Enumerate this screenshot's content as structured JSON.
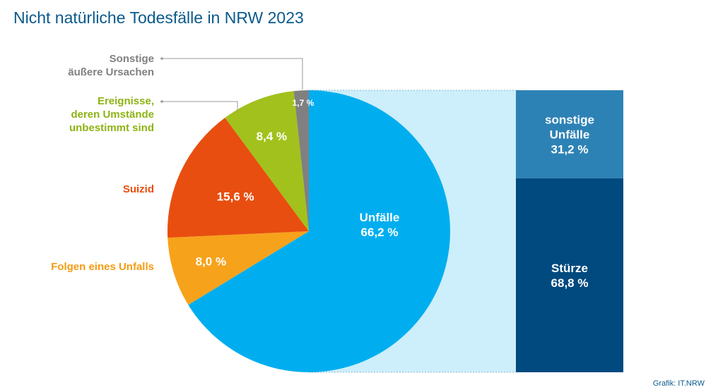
{
  "title": "Nicht natürliche Todesfälle in NRW 2023",
  "credit": "Grafik: IT.NRW",
  "colors": {
    "unfaelle": "#00aeef",
    "folgen": "#f7a21b",
    "suizid": "#e84e0f",
    "ereignisse": "#a2c11c",
    "sonstige_aeussere": "#808080",
    "breakout_bg": "#cdeefb",
    "sonstige_unfaelle": "#2d82b5",
    "stuerze": "#004a7f",
    "leader_gray": "#999999"
  },
  "chart_data": [
    {
      "type": "pie",
      "title": "Nicht natürliche Todesfälle in NRW 2023",
      "slices": [
        {
          "key": "unfaelle",
          "label": "Unfälle",
          "value": 66.2,
          "value_label": "66,2 %"
        },
        {
          "key": "folgen",
          "label": "Folgen eines Unfalls",
          "value": 8.0,
          "value_label": "8,0 %"
        },
        {
          "key": "suizid",
          "label": "Suizid",
          "value": 15.6,
          "value_label": "15,6 %"
        },
        {
          "key": "ereignisse",
          "label": "Ereignisse, deren Umstände unbestimmt sind",
          "value": 8.4,
          "value_label": "8,4 %"
        },
        {
          "key": "sonstige_aeussere",
          "label": "Sonstige äußere Ursachen",
          "value": 1.7,
          "value_label": "1,7 %"
        }
      ],
      "external_labels": {
        "sonstige_aeussere": [
          "Sonstige",
          "äußere Ursachen"
        ],
        "ereignisse": [
          "Ereignisse,",
          "deren Umstände",
          "unbestimmt sind"
        ],
        "suizid": [
          "Suizid"
        ],
        "folgen": [
          "Folgen eines Unfalls"
        ]
      }
    },
    {
      "type": "bar",
      "stacked": true,
      "breakout_of": "Unfälle",
      "segments": [
        {
          "key": "sonstige_unfaelle",
          "label": [
            "sonstige",
            "Unfälle"
          ],
          "value": 31.2,
          "value_label": "31,2 %"
        },
        {
          "key": "stuerze",
          "label": [
            "Stürze"
          ],
          "value": 68.8,
          "value_label": "68,8 %"
        }
      ]
    }
  ]
}
